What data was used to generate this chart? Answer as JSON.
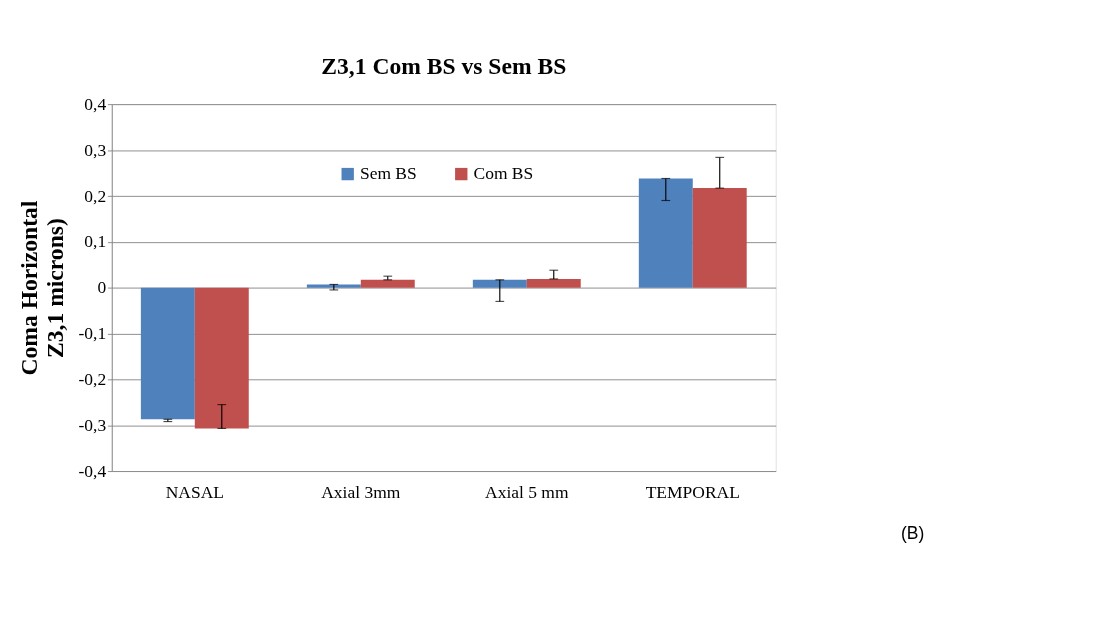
{
  "chart_data": {
    "type": "bar",
    "title": "Z3,1 Com BS vs Sem BS",
    "ylabel": "Coma  Horizontal\nZ3,1 microns)",
    "categories": [
      "NASAL",
      "Axial 3mm",
      "Axial 5 mm",
      "TEMPORAL"
    ],
    "series": [
      {
        "name": "Sem BS",
        "color": "#4f81bd",
        "values": [
          -0.287,
          0.007,
          0.017,
          0.238
        ],
        "errors": [
          [
            -0.292,
            -0.287
          ],
          [
            -0.005,
            0.007
          ],
          [
            -0.03,
            0.017
          ],
          [
            0.19,
            0.238
          ]
        ]
      },
      {
        "name": "Com BS",
        "color": "#c0504d",
        "values": [
          -0.307,
          0.017,
          0.019,
          0.217
        ],
        "errors": [
          [
            -0.307,
            -0.255
          ],
          [
            0.017,
            0.025
          ],
          [
            0.019,
            0.038
          ],
          [
            0.217,
            0.284
          ]
        ]
      }
    ],
    "ylim": [
      -0.4,
      0.4
    ],
    "yticks": [
      {
        "value": -0.4,
        "label": "-0,4"
      },
      {
        "value": -0.3,
        "label": "-0,3"
      },
      {
        "value": -0.2,
        "label": "-0,2"
      },
      {
        "value": -0.1,
        "label": "-0,1"
      },
      {
        "value": 0,
        "label": "0"
      },
      {
        "value": 0.1,
        "label": "0,1"
      },
      {
        "value": 0.2,
        "label": "0,2"
      },
      {
        "value": 0.3,
        "label": "0,3"
      },
      {
        "value": 0.4,
        "label": "0,4"
      }
    ],
    "grid": "y",
    "legend": "top",
    "annotations": [
      "(B)"
    ]
  }
}
